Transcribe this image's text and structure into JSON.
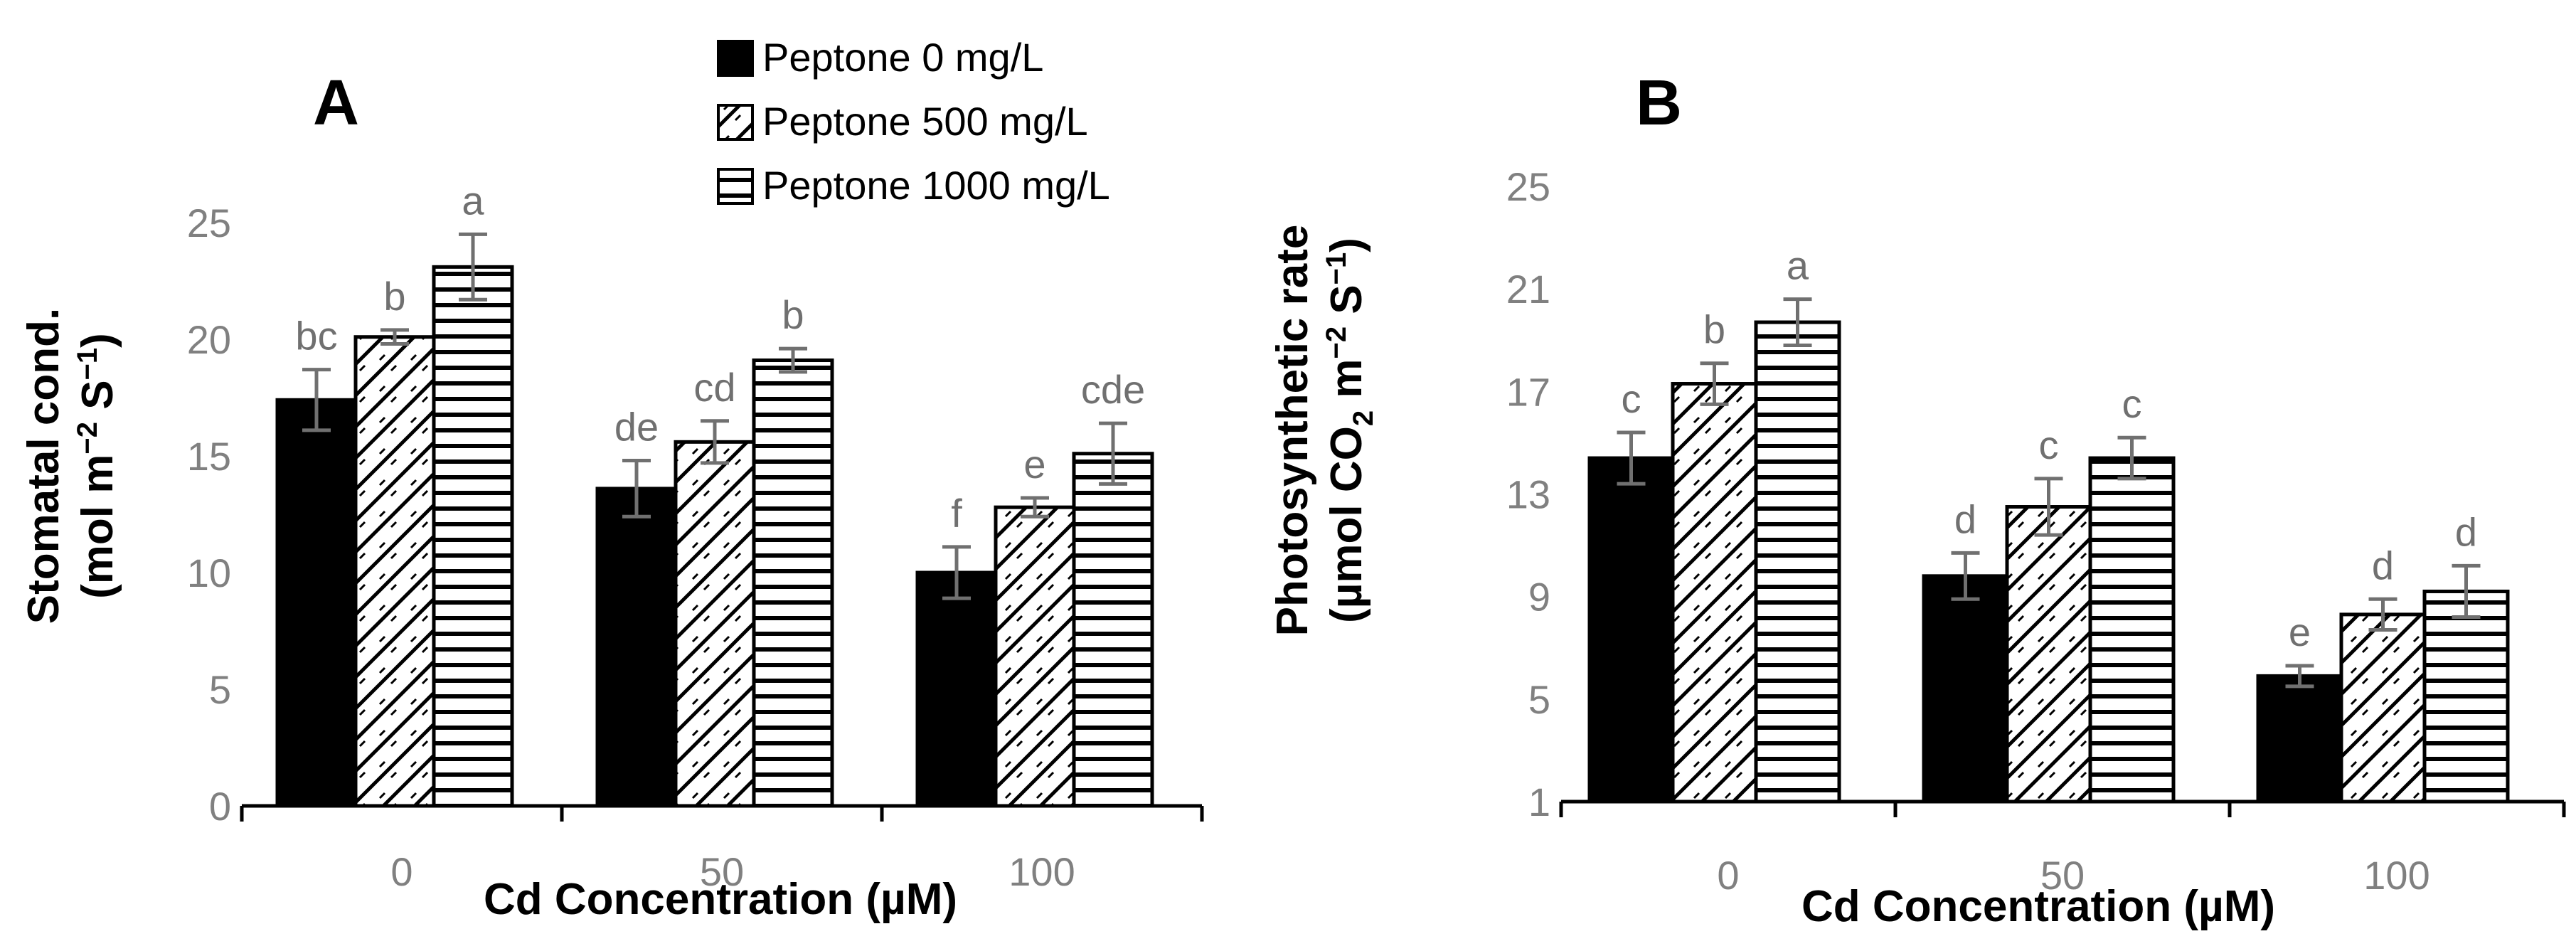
{
  "legend": {
    "items": [
      {
        "label": "Peptone 0 mg/L",
        "pattern": "solid"
      },
      {
        "label": "Peptone 500 mg/L",
        "pattern": "diagonal"
      },
      {
        "label": "Peptone 1000 mg/L",
        "pattern": "horizontal"
      }
    ]
  },
  "colors": {
    "bar_fill": "#000000",
    "bar_stroke": "#000000",
    "pattern_bg": "#ffffff",
    "error_bar": "#707070",
    "tick_label": "#808080",
    "significance_label": "#707070",
    "axis_line": "#000000"
  },
  "chart_data": [
    {
      "type": "bar",
      "panel_label": "A",
      "categories": [
        "0",
        "50",
        "100"
      ],
      "series": [
        {
          "name": "Peptone 0 mg/L",
          "values": [
            17.4,
            13.6,
            10.0
          ],
          "errors": [
            1.3,
            1.2,
            1.1
          ],
          "letters": [
            "bc",
            "de",
            "f"
          ]
        },
        {
          "name": "Peptone 500 mg/L",
          "values": [
            20.1,
            15.6,
            12.8
          ],
          "errors": [
            0.3,
            0.9,
            0.4
          ],
          "letters": [
            "b",
            "cd",
            "e"
          ]
        },
        {
          "name": "Peptone 1000 mg/L",
          "values": [
            23.1,
            19.1,
            15.1
          ],
          "errors": [
            1.4,
            0.5,
            1.3
          ],
          "letters": [
            "a",
            "b",
            "cde"
          ]
        }
      ],
      "xlabel": "Cd Concentration (µM)",
      "ylabel_line1": "Stomatal cond.",
      "ylabel_line2_main": "(mol m",
      "ylabel_sup1": "−2",
      "ylabel_mid": " S",
      "ylabel_sup2": "−1",
      "ylabel_end": ")",
      "ylim": [
        0,
        25
      ],
      "yticks": [
        0,
        5,
        10,
        15,
        20,
        25
      ]
    },
    {
      "type": "bar",
      "panel_label": "B",
      "categories": [
        "0",
        "50",
        "100"
      ],
      "series": [
        {
          "name": "Peptone 0 mg/L",
          "values": [
            14.4,
            9.8,
            5.9
          ],
          "errors": [
            1.0,
            0.9,
            0.4
          ],
          "letters": [
            "c",
            "d",
            "e"
          ]
        },
        {
          "name": "Peptone 500 mg/L",
          "values": [
            17.3,
            12.5,
            8.3
          ],
          "errors": [
            0.8,
            1.1,
            0.6
          ],
          "letters": [
            "b",
            "c",
            "d"
          ]
        },
        {
          "name": "Peptone 1000 mg/L",
          "values": [
            19.7,
            14.4,
            9.2
          ],
          "errors": [
            0.9,
            0.8,
            1.0
          ],
          "letters": [
            "a",
            "c",
            "d"
          ]
        }
      ],
      "xlabel": "Cd Concentration (µM)",
      "ylabel_line1": "Photosynthetic rate",
      "ylabel_line2_main": "(µmol CO",
      "ylabel_sub": "2",
      "ylabel_mid": " m",
      "ylabel_sup1": "−2",
      "ylabel_mid2": " S",
      "ylabel_sup2": "−1",
      "ylabel_end": ")",
      "ylim": [
        1,
        25
      ],
      "yticks": [
        1,
        5,
        9,
        13,
        17,
        21,
        25
      ]
    }
  ]
}
